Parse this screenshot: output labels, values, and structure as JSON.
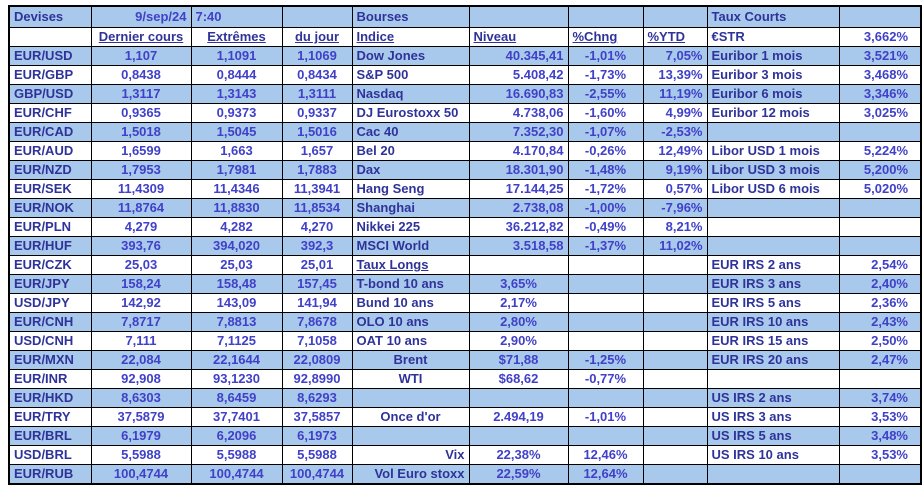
{
  "colors": {
    "row_highlight": "#A9C9EC",
    "label_text": "#2F3399",
    "value_text": "#4040C8",
    "border": "#000000"
  },
  "table": {
    "rows": [
      {
        "blue": true,
        "cells": [
          {
            "t": "Devises",
            "n": "section-title-devises"
          },
          {
            "t": "9/sep/24",
            "a": "r",
            "n": "date-value"
          },
          {
            "t": "7:40",
            "a": "l",
            "n": "time-value"
          },
          {
            "t": ""
          },
          {
            "t": "Bourses",
            "n": "section-title-bourses"
          },
          {
            "t": ""
          },
          {
            "t": ""
          },
          {
            "t": ""
          },
          {
            "t": "Taux Courts",
            "n": "section-title-taux-courts"
          },
          {
            "t": ""
          }
        ]
      },
      {
        "blue": false,
        "cells": [
          {
            "t": ""
          },
          {
            "t": "Dernier cours",
            "k": "lbl",
            "u": true,
            "a": "c",
            "n": "col-header-dernier-cours"
          },
          {
            "t": "Extrêmes",
            "k": "lbl",
            "u": true,
            "a": "c",
            "n": "col-header-extremes"
          },
          {
            "t": "du jour",
            "k": "lbl",
            "u": true,
            "a": "c",
            "n": "col-header-du-jour"
          },
          {
            "t": "Indice",
            "u": true,
            "n": "col-header-indice"
          },
          {
            "t": "Niveau",
            "k": "lbl",
            "u": true,
            "a": "l",
            "n": "col-header-niveau"
          },
          {
            "t": "%Chng",
            "k": "lbl",
            "u": true,
            "a": "l",
            "n": "col-header-chng"
          },
          {
            "t": "%YTD",
            "k": "lbl",
            "u": true,
            "a": "l",
            "n": "col-header-ytd"
          },
          {
            "t": "€STR"
          },
          {
            "t": "3,662%"
          }
        ]
      },
      {
        "blue": true,
        "cells": [
          {
            "t": "EUR/USD"
          },
          {
            "t": "1,107"
          },
          {
            "t": "1,1091"
          },
          {
            "t": "1,1069"
          },
          {
            "t": "Dow Jones"
          },
          {
            "t": "40.345,41"
          },
          {
            "t": "-1,01%"
          },
          {
            "t": "7,05%"
          },
          {
            "t": "Euribor 1 mois"
          },
          {
            "t": "3,521%"
          }
        ]
      },
      {
        "blue": false,
        "cells": [
          {
            "t": "EUR/GBP"
          },
          {
            "t": "0,8438"
          },
          {
            "t": "0,8444"
          },
          {
            "t": "0,8434"
          },
          {
            "t": "S&P 500"
          },
          {
            "t": "5.408,42"
          },
          {
            "t": "-1,73%"
          },
          {
            "t": "13,39%"
          },
          {
            "t": "Euribor 3 mois"
          },
          {
            "t": "3,468%"
          }
        ]
      },
      {
        "blue": true,
        "cells": [
          {
            "t": "GBP/USD"
          },
          {
            "t": "1,3117"
          },
          {
            "t": "1,3143"
          },
          {
            "t": "1,3111"
          },
          {
            "t": "Nasdaq"
          },
          {
            "t": "16.690,83"
          },
          {
            "t": "-2,55%"
          },
          {
            "t": "11,19%"
          },
          {
            "t": "Euribor 6 mois"
          },
          {
            "t": "3,346%"
          }
        ]
      },
      {
        "blue": false,
        "cells": [
          {
            "t": "EUR/CHF"
          },
          {
            "t": "0,9365"
          },
          {
            "t": "0,9373"
          },
          {
            "t": "0,9337"
          },
          {
            "t": "DJ Eurostoxx 50"
          },
          {
            "t": "4.738,06"
          },
          {
            "t": "-1,60%"
          },
          {
            "t": "4,99%"
          },
          {
            "t": "Euribor 12 mois"
          },
          {
            "t": "3,025%"
          }
        ]
      },
      {
        "blue": true,
        "cells": [
          {
            "t": "EUR/CAD"
          },
          {
            "t": "1,5018"
          },
          {
            "t": "1,5045"
          },
          {
            "t": "1,5016"
          },
          {
            "t": "Cac 40"
          },
          {
            "t": "7.352,30"
          },
          {
            "t": "-1,07%"
          },
          {
            "t": "-2,53%"
          },
          {
            "t": ""
          },
          {
            "t": ""
          }
        ]
      },
      {
        "blue": false,
        "cells": [
          {
            "t": "EUR/AUD"
          },
          {
            "t": "1,6599"
          },
          {
            "t": "1,663"
          },
          {
            "t": "1,657"
          },
          {
            "t": "Bel 20"
          },
          {
            "t": "4.170,84"
          },
          {
            "t": "-0,26%"
          },
          {
            "t": "12,49%"
          },
          {
            "t": "Libor USD 1 mois"
          },
          {
            "t": "5,224%"
          }
        ]
      },
      {
        "blue": true,
        "cells": [
          {
            "t": "EUR/NZD"
          },
          {
            "t": "1,7953"
          },
          {
            "t": "1,7981"
          },
          {
            "t": "1,7883"
          },
          {
            "t": "Dax"
          },
          {
            "t": "18.301,90"
          },
          {
            "t": "-1,48%"
          },
          {
            "t": "9,19%"
          },
          {
            "t": "Libor USD 3 mois"
          },
          {
            "t": "5,200%"
          }
        ]
      },
      {
        "blue": false,
        "cells": [
          {
            "t": "EUR/SEK"
          },
          {
            "t": "11,4309"
          },
          {
            "t": "11,4346"
          },
          {
            "t": "11,3941"
          },
          {
            "t": "Hang Seng"
          },
          {
            "t": "17.144,25"
          },
          {
            "t": "-1,72%"
          },
          {
            "t": "0,57%"
          },
          {
            "t": "Libor USD 6 mois"
          },
          {
            "t": "5,020%"
          }
        ]
      },
      {
        "blue": true,
        "cells": [
          {
            "t": "EUR/NOK"
          },
          {
            "t": "11,8764"
          },
          {
            "t": "11,8830"
          },
          {
            "t": "11,8534"
          },
          {
            "t": "Shanghai"
          },
          {
            "t": "2.738,08"
          },
          {
            "t": "-1,00%"
          },
          {
            "t": "-7,96%"
          },
          {
            "t": ""
          },
          {
            "t": ""
          }
        ]
      },
      {
        "blue": false,
        "cells": [
          {
            "t": "EUR/PLN"
          },
          {
            "t": "4,279"
          },
          {
            "t": "4,282"
          },
          {
            "t": "4,270"
          },
          {
            "t": "Nikkei 225"
          },
          {
            "t": "36.212,82"
          },
          {
            "t": "-0,49%"
          },
          {
            "t": "8,21%"
          },
          {
            "t": ""
          },
          {
            "t": ""
          }
        ]
      },
      {
        "blue": true,
        "cells": [
          {
            "t": "EUR/HUF"
          },
          {
            "t": "393,76"
          },
          {
            "t": "394,020"
          },
          {
            "t": "392,3"
          },
          {
            "t": "MSCI World"
          },
          {
            "t": "3.518,58"
          },
          {
            "t": "-1,37%"
          },
          {
            "t": "11,02%"
          },
          {
            "t": ""
          },
          {
            "t": ""
          }
        ]
      },
      {
        "blue": false,
        "cells": [
          {
            "t": "EUR/CZK"
          },
          {
            "t": "25,03"
          },
          {
            "t": "25,03"
          },
          {
            "t": "25,01"
          },
          {
            "t": "Taux Longs",
            "u": true,
            "n": "subsection-title-taux-longs"
          },
          {
            "t": ""
          },
          {
            "t": ""
          },
          {
            "t": ""
          },
          {
            "t": "EUR IRS 2 ans"
          },
          {
            "t": "2,54%"
          }
        ]
      },
      {
        "blue": true,
        "cells": [
          {
            "t": "EUR/JPY"
          },
          {
            "t": "158,24"
          },
          {
            "t": "158,48"
          },
          {
            "t": "157,45"
          },
          {
            "t": "T-bond 10 ans"
          },
          {
            "t": "3,65%",
            "a": "c"
          },
          {
            "t": ""
          },
          {
            "t": ""
          },
          {
            "t": "EUR IRS 3 ans"
          },
          {
            "t": "2,40%"
          }
        ]
      },
      {
        "blue": false,
        "cells": [
          {
            "t": "USD/JPY"
          },
          {
            "t": "142,92"
          },
          {
            "t": "143,09"
          },
          {
            "t": "141,94"
          },
          {
            "t": "Bund 10 ans"
          },
          {
            "t": "2,17%",
            "a": "c"
          },
          {
            "t": ""
          },
          {
            "t": ""
          },
          {
            "t": "EUR IRS 5 ans"
          },
          {
            "t": "2,36%"
          }
        ]
      },
      {
        "blue": true,
        "cells": [
          {
            "t": "EUR/CNH"
          },
          {
            "t": "7,8717"
          },
          {
            "t": "7,8813"
          },
          {
            "t": "7,8678"
          },
          {
            "t": "OLO 10 ans"
          },
          {
            "t": "2,80%",
            "a": "c"
          },
          {
            "t": ""
          },
          {
            "t": ""
          },
          {
            "t": "EUR IRS 10 ans"
          },
          {
            "t": "2,43%"
          }
        ]
      },
      {
        "blue": false,
        "cells": [
          {
            "t": "USD/CNH"
          },
          {
            "t": "7,111"
          },
          {
            "t": "7,1125"
          },
          {
            "t": "7,1058"
          },
          {
            "t": "OAT 10 ans"
          },
          {
            "t": "2,90%",
            "a": "c"
          },
          {
            "t": ""
          },
          {
            "t": ""
          },
          {
            "t": "EUR IRS 15 ans"
          },
          {
            "t": "2,50%"
          }
        ]
      },
      {
        "blue": true,
        "cells": [
          {
            "t": "EUR/MXN"
          },
          {
            "t": "22,084"
          },
          {
            "t": "22,1644"
          },
          {
            "t": "22,0809"
          },
          {
            "t": "Brent",
            "a": "c"
          },
          {
            "t": "$71,88",
            "a": "c"
          },
          {
            "t": "-1,25%"
          },
          {
            "t": ""
          },
          {
            "t": "EUR IRS 20 ans"
          },
          {
            "t": "2,47%"
          }
        ]
      },
      {
        "blue": false,
        "cells": [
          {
            "t": "EUR/INR"
          },
          {
            "t": "92,908"
          },
          {
            "t": "93,1230"
          },
          {
            "t": "92,8990"
          },
          {
            "t": "WTI",
            "a": "c"
          },
          {
            "t": "$68,62",
            "a": "c"
          },
          {
            "t": "-0,77%"
          },
          {
            "t": ""
          },
          {
            "t": ""
          },
          {
            "t": ""
          }
        ]
      },
      {
        "blue": true,
        "cells": [
          {
            "t": "EUR/HKD"
          },
          {
            "t": "8,6303"
          },
          {
            "t": "8,6459"
          },
          {
            "t": "8,6293"
          },
          {
            "t": ""
          },
          {
            "t": ""
          },
          {
            "t": ""
          },
          {
            "t": ""
          },
          {
            "t": "US IRS 2 ans"
          },
          {
            "t": "3,74%"
          }
        ]
      },
      {
        "blue": false,
        "cells": [
          {
            "t": "EUR/TRY"
          },
          {
            "t": "37,5879"
          },
          {
            "t": "37,7401"
          },
          {
            "t": "37,5857"
          },
          {
            "t": "Once d'or",
            "a": "c"
          },
          {
            "t": "2.494,19",
            "a": "c"
          },
          {
            "t": "-1,01%"
          },
          {
            "t": ""
          },
          {
            "t": "US IRS 3 ans"
          },
          {
            "t": "3,53%"
          }
        ]
      },
      {
        "blue": true,
        "cells": [
          {
            "t": "EUR/BRL"
          },
          {
            "t": "6,1979"
          },
          {
            "t": "6,2096"
          },
          {
            "t": "6,1973"
          },
          {
            "t": ""
          },
          {
            "t": ""
          },
          {
            "t": ""
          },
          {
            "t": ""
          },
          {
            "t": "US IRS 5 ans"
          },
          {
            "t": "3,48%"
          }
        ]
      },
      {
        "blue": false,
        "cells": [
          {
            "t": "USD/BRL"
          },
          {
            "t": "5,5988"
          },
          {
            "t": "5,5988"
          },
          {
            "t": "5,5988"
          },
          {
            "t": "Vix",
            "a": "r"
          },
          {
            "t": "22,38%",
            "a": "c"
          },
          {
            "t": "12,46%"
          },
          {
            "t": ""
          },
          {
            "t": "US IRS 10 ans"
          },
          {
            "t": "3,53%"
          }
        ]
      },
      {
        "blue": true,
        "cells": [
          {
            "t": "EUR/RUB"
          },
          {
            "t": "100,4744"
          },
          {
            "t": "100,4744"
          },
          {
            "t": "100,4744"
          },
          {
            "t": "Vol Euro stoxx",
            "a": "r"
          },
          {
            "t": "22,59%",
            "a": "c"
          },
          {
            "t": "12,64%"
          },
          {
            "t": ""
          },
          {
            "t": ""
          },
          {
            "t": ""
          }
        ]
      }
    ]
  }
}
